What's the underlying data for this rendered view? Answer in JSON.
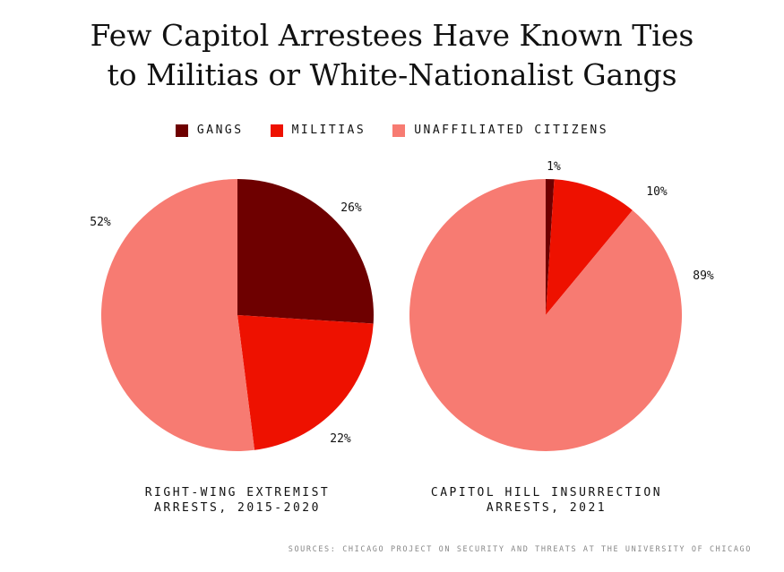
{
  "title_line1": "Few Capitol Arrestees Have Known Ties",
  "title_line2": "to Militias or White-Nationalist Gangs",
  "legend": [
    {
      "label": "GANGS",
      "color": "#6e0000"
    },
    {
      "label": "MILITIAS",
      "color": "#ee1100"
    },
    {
      "label": "UNAFFILIATED CITIZENS",
      "color": "#f77b72"
    }
  ],
  "source": "SOURCES: CHICAGO PROJECT ON SECURITY AND THREATS AT THE UNIVERSITY OF CHICAGO",
  "chart_data": [
    {
      "type": "pie",
      "caption_line1": "RIGHT-WING EXTREMIST",
      "caption_line2": "ARRESTS, 2015-2020",
      "slices": [
        {
          "category": "GANGS",
          "value": 26,
          "label": "26%"
        },
        {
          "category": "MILITIAS",
          "value": 22,
          "label": "22%"
        },
        {
          "category": "UNAFFILIATED CITIZENS",
          "value": 52,
          "label": "52%"
        }
      ]
    },
    {
      "type": "pie",
      "caption_line1": "CAPITOL HILL INSURRECTION",
      "caption_line2": "ARRESTS, 2021",
      "slices": [
        {
          "category": "GANGS",
          "value": 1,
          "label": "1%"
        },
        {
          "category": "MILITIAS",
          "value": 10,
          "label": "10%"
        },
        {
          "category": "UNAFFILIATED CITIZENS",
          "value": 89,
          "label": "89%"
        }
      ]
    }
  ]
}
